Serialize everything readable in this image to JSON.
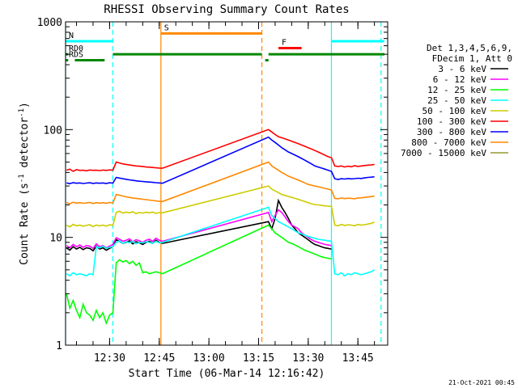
{
  "chart_data": {
    "type": "line",
    "title": "RHESSI Observing Summary Count Rates",
    "xlabel": "Start Time (06-Mar-14 12:16:42)",
    "ylabel_main": "Count Rate (s",
    "ylabel_sup1": "-1",
    "ylabel_mid": " detector",
    "ylabel_sup2": "-1",
    "ylabel_end": ")",
    "footer": "21-Oct-2021 00:45",
    "y_scale": "log",
    "ylim": [
      1,
      1000
    ],
    "xlim": [
      "12:16:42",
      "13:54:00"
    ],
    "x_ticks": [
      "12:30",
      "12:45",
      "13:00",
      "13:15",
      "13:30",
      "13:45"
    ],
    "y_ticks": [
      {
        "value": 1,
        "label": "1"
      },
      {
        "value": 10,
        "label": "10"
      },
      {
        "value": 100,
        "label": "100"
      },
      {
        "value": 1000,
        "label": "1000"
      }
    ],
    "legend_position": "right",
    "legend_header": [
      "Det 1,3,4,5,6,9,",
      "FDecim 1, Att 0"
    ],
    "series": [
      {
        "name": "3 - 6 keV",
        "color": "#000000",
        "x": [
          "12:17",
          "12:18",
          "12:19",
          "12:20",
          "12:21",
          "12:22",
          "12:23",
          "12:24",
          "12:25",
          "12:26",
          "12:27",
          "12:28",
          "12:29",
          "12:30",
          "12:31",
          "12:32",
          "12:33",
          "12:34",
          "12:35",
          "12:36",
          "12:37",
          "12:38",
          "12:39",
          "12:40",
          "12:41",
          "12:42",
          "12:43",
          "12:44",
          "12:45",
          "12:46",
          "13:18",
          "13:19",
          "13:20",
          "13:21",
          "13:22",
          "13:23",
          "13:24",
          "13:25",
          "13:26",
          "13:27",
          "13:28",
          "13:29",
          "13:30",
          "13:31",
          "13:32",
          "13:33",
          "13:34",
          "13:35",
          "13:36",
          "13:37"
        ],
        "y": [
          8.0,
          7.6,
          8.2,
          7.8,
          8.1,
          7.7,
          8.0,
          7.9,
          7.5,
          8.3,
          7.8,
          8.0,
          7.6,
          7.9,
          8.2,
          9.5,
          9.2,
          8.8,
          9.0,
          9.3,
          8.7,
          9.1,
          8.9,
          8.6,
          9.0,
          9.2,
          8.8,
          9.4,
          9.0,
          8.8,
          14,
          12,
          15,
          22,
          19,
          17,
          15,
          13,
          12,
          11,
          10.5,
          10,
          9.5,
          9,
          8.6,
          8.4,
          8.2,
          8.0,
          7.9,
          7.8
        ]
      },
      {
        "name": "6 - 12 keV",
        "color": "#ff00ff",
        "x": [
          "12:17",
          "12:18",
          "12:19",
          "12:20",
          "12:21",
          "12:22",
          "12:23",
          "12:24",
          "12:25",
          "12:26",
          "12:27",
          "12:28",
          "12:29",
          "12:30",
          "12:31",
          "12:32",
          "12:33",
          "12:34",
          "12:35",
          "12:36",
          "12:37",
          "12:38",
          "12:39",
          "12:40",
          "12:41",
          "12:42",
          "12:43",
          "12:44",
          "12:45",
          "12:46",
          "13:18",
          "13:19",
          "13:20",
          "13:21",
          "13:22",
          "13:23",
          "13:24",
          "13:25",
          "13:26",
          "13:27",
          "13:28",
          "13:29",
          "13:30",
          "13:31",
          "13:32",
          "13:33",
          "13:34",
          "13:35",
          "13:36",
          "13:37"
        ],
        "y": [
          8.4,
          8.0,
          8.6,
          8.2,
          8.5,
          8.1,
          8.4,
          8.3,
          7.9,
          8.7,
          8.2,
          8.4,
          8.0,
          8.3,
          8.6,
          9.9,
          9.6,
          9.2,
          9.4,
          9.7,
          9.1,
          9.5,
          9.3,
          9.0,
          9.4,
          9.6,
          9.2,
          9.8,
          9.4,
          9.2,
          17,
          14,
          16,
          18,
          17,
          15.5,
          14,
          13,
          12.5,
          12,
          11,
          10.5,
          10,
          9.5,
          9.2,
          9.0,
          8.8,
          8.6,
          8.5,
          8.4
        ]
      },
      {
        "name": "12 - 25 keV",
        "color": "#00ff00",
        "x": [
          "12:17",
          "12:18",
          "12:19",
          "12:20",
          "12:21",
          "12:22",
          "12:23",
          "12:24",
          "12:25",
          "12:26",
          "12:27",
          "12:28",
          "12:29",
          "12:30",
          "12:31",
          "12:32",
          "12:33",
          "12:34",
          "12:35",
          "12:36",
          "12:37",
          "12:38",
          "12:39",
          "12:40",
          "12:41",
          "12:42",
          "12:43",
          "12:44",
          "12:45",
          "12:46",
          "13:18",
          "13:19",
          "13:20",
          "13:21",
          "13:22",
          "13:23",
          "13:24",
          "13:25",
          "13:26",
          "13:27",
          "13:28",
          "13:29",
          "13:30",
          "13:31",
          "13:32",
          "13:33",
          "13:34",
          "13:35",
          "13:36",
          "13:37"
        ],
        "y": [
          3.0,
          2.2,
          2.6,
          2.1,
          1.8,
          2.4,
          2.0,
          1.9,
          1.7,
          2.1,
          1.8,
          2.0,
          1.6,
          1.9,
          2.0,
          5.8,
          6.2,
          5.9,
          6.1,
          5.7,
          6.0,
          5.5,
          5.8,
          4.7,
          4.8,
          4.6,
          4.7,
          4.8,
          4.7,
          4.6,
          13,
          12,
          11,
          10.5,
          10,
          9.5,
          9,
          8.8,
          8.5,
          8.2,
          7.9,
          7.6,
          7.4,
          7.2,
          7.0,
          6.8,
          6.6,
          6.5,
          6.4,
          6.3
        ]
      },
      {
        "name": "25 - 50 keV",
        "color": "#00ffff",
        "x": [
          "12:17",
          "12:18",
          "12:19",
          "12:20",
          "12:21",
          "12:22",
          "12:23",
          "12:24",
          "12:25",
          "12:26",
          "12:27",
          "12:28",
          "12:29",
          "12:30",
          "12:31",
          "12:32",
          "12:33",
          "12:34",
          "12:35",
          "12:36",
          "12:37",
          "12:38",
          "12:39",
          "12:40",
          "12:41",
          "12:42",
          "12:43",
          "12:44",
          "12:45",
          "12:46",
          "13:18",
          "13:19",
          "13:20",
          "13:21",
          "13:22",
          "13:23",
          "13:24",
          "13:25",
          "13:26",
          "13:27",
          "13:28",
          "13:29",
          "13:30",
          "13:31",
          "13:32",
          "13:33",
          "13:34",
          "13:35",
          "13:36",
          "13:37",
          "13:38",
          "13:39",
          "13:40",
          "13:41",
          "13:42",
          "13:43",
          "13:44",
          "13:45",
          "13:46",
          "13:47",
          "13:48",
          "13:49",
          "13:50"
        ],
        "y": [
          4.6,
          4.4,
          4.7,
          4.5,
          4.6,
          4.5,
          4.4,
          4.6,
          4.5,
          8.2,
          8.0,
          8.3,
          7.9,
          8.1,
          8.2,
          9.0,
          9.3,
          8.8,
          9.1,
          8.9,
          9.2,
          8.7,
          9.0,
          8.9,
          9.1,
          9.0,
          8.8,
          9.2,
          8.9,
          9.0,
          19,
          16,
          15,
          14,
          13.5,
          13,
          12.5,
          12,
          11.5,
          11,
          10.8,
          10.5,
          10.2,
          10,
          9.8,
          9.6,
          9.5,
          9.4,
          9.3,
          9.2,
          4.6,
          4.5,
          4.7,
          4.4,
          4.6,
          4.5,
          4.7,
          4.6,
          4.5,
          4.6,
          4.7,
          4.8,
          5.0
        ]
      },
      {
        "name": "50 - 100 keV",
        "color": "#cccc00",
        "x": [
          "12:17",
          "12:18",
          "12:19",
          "12:20",
          "12:21",
          "12:22",
          "12:23",
          "12:24",
          "12:25",
          "12:26",
          "12:27",
          "12:28",
          "12:29",
          "12:30",
          "12:31",
          "12:32",
          "12:33",
          "12:34",
          "12:35",
          "12:36",
          "12:37",
          "12:38",
          "12:39",
          "12:40",
          "12:41",
          "12:42",
          "12:43",
          "12:44",
          "12:45",
          "12:46",
          "13:18",
          "13:19",
          "13:20",
          "13:21",
          "13:22",
          "13:23",
          "13:24",
          "13:25",
          "13:26",
          "13:27",
          "13:28",
          "13:29",
          "13:30",
          "13:31",
          "13:32",
          "13:33",
          "13:34",
          "13:35",
          "13:36",
          "13:37",
          "13:38",
          "13:39",
          "13:40",
          "13:41",
          "13:42",
          "13:43",
          "13:44",
          "13:45",
          "13:46",
          "13:47",
          "13:48",
          "13:49",
          "13:50"
        ],
        "y": [
          13,
          12.5,
          13.2,
          12.8,
          13,
          12.7,
          12.9,
          13.1,
          12.6,
          13,
          12.8,
          13,
          12.7,
          13.1,
          12.9,
          17,
          17.5,
          16.8,
          17.2,
          16.9,
          17.3,
          16.6,
          17,
          16.8,
          17.1,
          16.9,
          17.2,
          16.7,
          17,
          16.9,
          30,
          28,
          27,
          26,
          25,
          24.5,
          24,
          23.5,
          23,
          22.5,
          22,
          21.5,
          21,
          20.5,
          20.2,
          20,
          19.8,
          19.6,
          19.5,
          19.4,
          13,
          12.8,
          13.2,
          12.9,
          13.1,
          13,
          12.8,
          13.2,
          13,
          13.1,
          13.3,
          13.5,
          13.8
        ]
      },
      {
        "name": "100 - 300 keV",
        "color": "#ff0000",
        "x": [
          "12:17",
          "12:18",
          "12:19",
          "12:20",
          "12:21",
          "12:22",
          "12:23",
          "12:24",
          "12:25",
          "12:26",
          "12:27",
          "12:28",
          "12:29",
          "12:30",
          "12:31",
          "12:32",
          "12:33",
          "12:34",
          "12:35",
          "12:36",
          "12:37",
          "12:38",
          "12:39",
          "12:40",
          "12:41",
          "12:42",
          "12:43",
          "12:44",
          "12:45",
          "12:46",
          "13:18",
          "13:19",
          "13:20",
          "13:21",
          "13:22",
          "13:23",
          "13:24",
          "13:25",
          "13:26",
          "13:27",
          "13:28",
          "13:29",
          "13:30",
          "13:31",
          "13:32",
          "13:33",
          "13:34",
          "13:35",
          "13:36",
          "13:37",
          "13:38",
          "13:39",
          "13:40",
          "13:41",
          "13:42",
          "13:43",
          "13:44",
          "13:45",
          "13:46",
          "13:47",
          "13:48",
          "13:49",
          "13:50"
        ],
        "y": [
          42,
          43,
          41,
          42.5,
          41.8,
          42,
          41.5,
          42.2,
          41.9,
          42,
          41.7,
          42.1,
          41.8,
          42.3,
          42,
          50,
          49,
          48,
          47.5,
          47,
          46.5,
          46,
          45.8,
          45.5,
          45,
          44.8,
          44.5,
          44.2,
          44,
          43.8,
          100,
          95,
          90,
          86,
          84,
          82,
          80,
          78,
          76,
          74,
          72,
          70,
          68,
          66,
          64,
          62,
          60,
          58,
          56,
          55,
          46,
          45.5,
          46,
          45,
          45.8,
          45.2,
          46.2,
          45.5,
          46,
          46.4,
          46.8,
          47,
          47.5
        ]
      },
      {
        "name": "300 - 800 keV",
        "color": "#0000ff",
        "x": [
          "12:17",
          "12:18",
          "12:19",
          "12:20",
          "12:21",
          "12:22",
          "12:23",
          "12:24",
          "12:25",
          "12:26",
          "12:27",
          "12:28",
          "12:29",
          "12:30",
          "12:31",
          "12:32",
          "12:33",
          "12:34",
          "12:35",
          "12:36",
          "12:37",
          "12:38",
          "12:39",
          "12:40",
          "12:41",
          "12:42",
          "12:43",
          "12:44",
          "12:45",
          "12:46",
          "13:18",
          "13:19",
          "13:20",
          "13:21",
          "13:22",
          "13:23",
          "13:24",
          "13:25",
          "13:26",
          "13:27",
          "13:28",
          "13:29",
          "13:30",
          "13:31",
          "13:32",
          "13:33",
          "13:34",
          "13:35",
          "13:36",
          "13:37",
          "13:38",
          "13:39",
          "13:40",
          "13:41",
          "13:42",
          "13:43",
          "13:44",
          "13:45",
          "13:46",
          "13:47",
          "13:48",
          "13:49",
          "13:50"
        ],
        "y": [
          32,
          31.5,
          32.2,
          31.8,
          32,
          31.6,
          31.9,
          32.1,
          31.7,
          32,
          31.8,
          32,
          31.6,
          32.1,
          31.9,
          36,
          35.5,
          35,
          34.6,
          34.2,
          33.8,
          33.5,
          33.2,
          33,
          32.8,
          32.6,
          32.4,
          32.2,
          32,
          31.8,
          85,
          80,
          76,
          72,
          68,
          65,
          62,
          60,
          58,
          56,
          54,
          52,
          50,
          48,
          46,
          45,
          44,
          43,
          42,
          41,
          35,
          34.5,
          35,
          34.8,
          35.2,
          34.9,
          35.1,
          35.4,
          35.2,
          35.6,
          36,
          36.2,
          36.5
        ]
      },
      {
        "name": "800 - 7000 keV",
        "color": "#ff8800",
        "x": [
          "12:17",
          "12:18",
          "12:19",
          "12:20",
          "12:21",
          "12:22",
          "12:23",
          "12:24",
          "12:25",
          "12:26",
          "12:27",
          "12:28",
          "12:29",
          "12:30",
          "12:31",
          "12:32",
          "12:33",
          "12:34",
          "12:35",
          "12:36",
          "12:37",
          "12:38",
          "12:39",
          "12:40",
          "12:41",
          "12:42",
          "12:43",
          "12:44",
          "12:45",
          "12:46",
          "13:18",
          "13:19",
          "13:20",
          "13:21",
          "13:22",
          "13:23",
          "13:24",
          "13:25",
          "13:26",
          "13:27",
          "13:28",
          "13:29",
          "13:30",
          "13:31",
          "13:32",
          "13:33",
          "13:34",
          "13:35",
          "13:36",
          "13:37",
          "13:38",
          "13:39",
          "13:40",
          "13:41",
          "13:42",
          "13:43",
          "13:44",
          "13:45",
          "13:46",
          "13:47",
          "13:48",
          "13:49",
          "13:50"
        ],
        "y": [
          21,
          20.5,
          21.2,
          20.8,
          21,
          20.7,
          20.9,
          21.1,
          20.6,
          21,
          20.8,
          21,
          20.7,
          21.1,
          20.9,
          25,
          24.6,
          24.2,
          23.8,
          23.5,
          23.2,
          23,
          22.8,
          22.6,
          22.4,
          22.2,
          22,
          21.8,
          21.6,
          21.5,
          50,
          46,
          44,
          42,
          40,
          38.5,
          37,
          36,
          35,
          34,
          33,
          32,
          31,
          30.5,
          30,
          29.5,
          29,
          28.5,
          28,
          27.5,
          23,
          22.8,
          23.2,
          22.9,
          23.1,
          23,
          22.8,
          23.2,
          23.3,
          23.5,
          23.7,
          23.9,
          24.2
        ]
      },
      {
        "name": "7000 - 15000 keV",
        "color": "#999933",
        "x": [],
        "y": []
      }
    ],
    "state_bars": [
      {
        "label": "N",
        "color": "#00ffff",
        "y": 660,
        "segments": [
          [
            "12:16:42",
            "12:31:00"
          ],
          [
            "13:37:00",
            "13:53:00"
          ]
        ]
      },
      {
        "label": "S",
        "color": "#ff8800",
        "y": 780,
        "segments": [
          [
            "12:45:30",
            "13:16:00"
          ]
        ]
      },
      {
        "label": "F",
        "color": "#ff0000",
        "y": 570,
        "segments": [
          [
            "13:21:00",
            "13:28:00"
          ]
        ]
      },
      {
        "label": "RD0",
        "color": "#008800",
        "y": 500,
        "segments": [
          [
            "12:16:42",
            "12:17:30"
          ],
          [
            "12:31:00",
            "13:16:00"
          ],
          [
            "13:18:00",
            "13:53:00"
          ]
        ]
      },
      {
        "label": "RDS",
        "color": "#008800",
        "y": 440,
        "segments": [
          [
            "12:16:42",
            "12:17:30"
          ],
          [
            "12:19:30",
            "12:28:30"
          ],
          [
            "13:17:00",
            "13:18:00"
          ]
        ]
      }
    ],
    "markers": [
      {
        "time": "12:16:42",
        "color": "#00ffff",
        "style": "solid"
      },
      {
        "time": "12:31:00",
        "color": "#00ffff",
        "style": "dashed"
      },
      {
        "time": "12:45:30",
        "color": "#ff8800",
        "style": "solid"
      },
      {
        "time": "13:16:00",
        "color": "#ff8800",
        "style": "dashed"
      },
      {
        "time": "13:37:00",
        "color": "#00ffff",
        "style": "solid"
      },
      {
        "time": "13:52:00",
        "color": "#00ffff",
        "style": "dashed"
      }
    ]
  }
}
